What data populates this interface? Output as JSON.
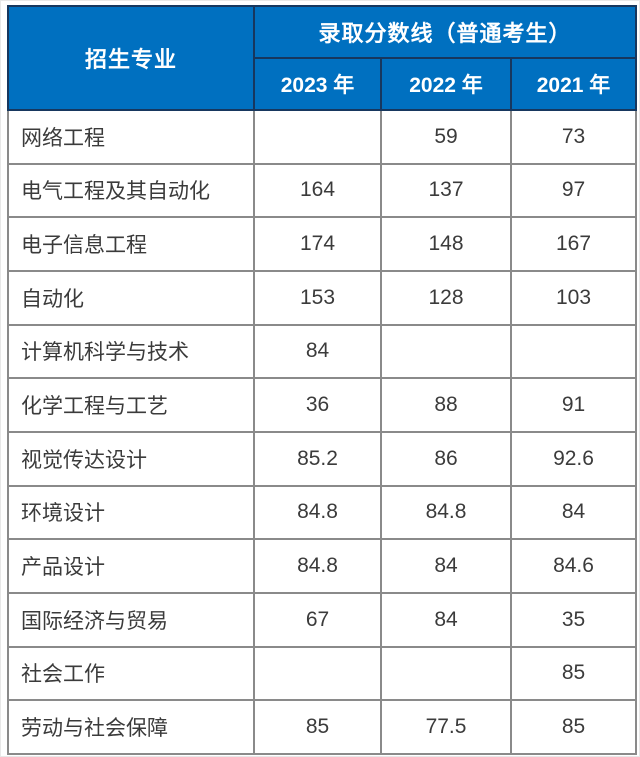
{
  "table": {
    "header": {
      "major_label": "招生专业",
      "group_label": "录取分数线（普通考生）",
      "years": [
        "2023 年",
        "2022 年",
        "2021 年"
      ]
    },
    "rows": [
      {
        "major": "网络工程",
        "scores": [
          "",
          "59",
          "73"
        ]
      },
      {
        "major": "电气工程及其自动化",
        "scores": [
          "164",
          "137",
          "97"
        ]
      },
      {
        "major": "电子信息工程",
        "scores": [
          "174",
          "148",
          "167"
        ]
      },
      {
        "major": "自动化",
        "scores": [
          "153",
          "128",
          "103"
        ]
      },
      {
        "major": "计算机科学与技术",
        "scores": [
          "84",
          "",
          ""
        ]
      },
      {
        "major": "化学工程与工艺",
        "scores": [
          "36",
          "88",
          "91"
        ]
      },
      {
        "major": "视觉传达设计",
        "scores": [
          "85.2",
          "86",
          "92.6"
        ]
      },
      {
        "major": "环境设计",
        "scores": [
          "84.8",
          "84.8",
          "84"
        ]
      },
      {
        "major": "产品设计",
        "scores": [
          "84.8",
          "84",
          "84.6"
        ]
      },
      {
        "major": "国际经济与贸易",
        "scores": [
          "67",
          "84",
          "35"
        ]
      },
      {
        "major": "社会工作",
        "scores": [
          "",
          "",
          "85"
        ]
      },
      {
        "major": "劳动与社会保障",
        "scores": [
          "85",
          "77.5",
          "85"
        ]
      }
    ],
    "colors": {
      "header_bg": "#0070C0",
      "header_divider": "#17375E",
      "header_text": "#FFFFFF",
      "body_border": "#8A8A8A",
      "body_text": "#3B3B3B"
    }
  },
  "chart_data": {
    "type": "table",
    "title": "录取分数线（普通考生）",
    "columns": [
      "招生专业",
      "2023 年",
      "2022 年",
      "2021 年"
    ],
    "rows": [
      [
        "网络工程",
        null,
        59,
        73
      ],
      [
        "电气工程及其自动化",
        164,
        137,
        97
      ],
      [
        "电子信息工程",
        174,
        148,
        167
      ],
      [
        "自动化",
        153,
        128,
        103
      ],
      [
        "计算机科学与技术",
        84,
        null,
        null
      ],
      [
        "化学工程与工艺",
        36,
        88,
        91
      ],
      [
        "视觉传达设计",
        85.2,
        86,
        92.6
      ],
      [
        "环境设计",
        84.8,
        84.8,
        84
      ],
      [
        "产品设计",
        84.8,
        84,
        84.6
      ],
      [
        "国际经济与贸易",
        67,
        84,
        35
      ],
      [
        "社会工作",
        null,
        null,
        85
      ],
      [
        "劳动与社会保障",
        85,
        77.5,
        85
      ]
    ]
  }
}
